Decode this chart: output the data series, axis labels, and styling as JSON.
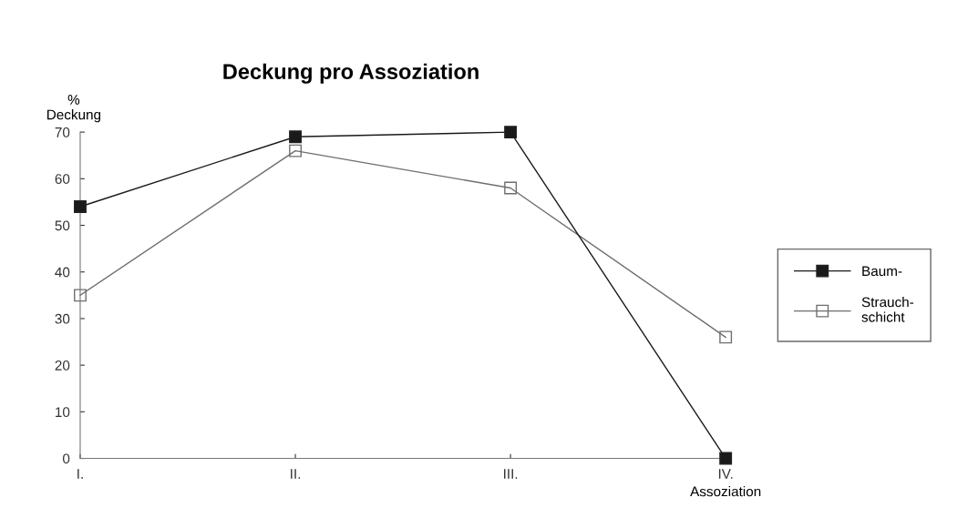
{
  "chart_data": {
    "type": "line",
    "title": "Deckung pro Assoziation",
    "ylabel": "%\nDeckung",
    "xlabel": "Assoziation",
    "categories": [
      "I.",
      "II.",
      "III.",
      "IV."
    ],
    "series": [
      {
        "name": "Baum-",
        "color": "#1a1a1a",
        "values": [
          54,
          69,
          70,
          0
        ]
      },
      {
        "name": "Strauch-\nschicht",
        "color": "#6e6e6e",
        "values": [
          35,
          66,
          58,
          26
        ]
      }
    ],
    "ylim": [
      0,
      70
    ],
    "yticks": [
      0,
      10,
      20,
      30,
      40,
      50,
      60,
      70
    ],
    "grid": false,
    "legend": "right",
    "marker": "square",
    "line_style": "solid"
  }
}
